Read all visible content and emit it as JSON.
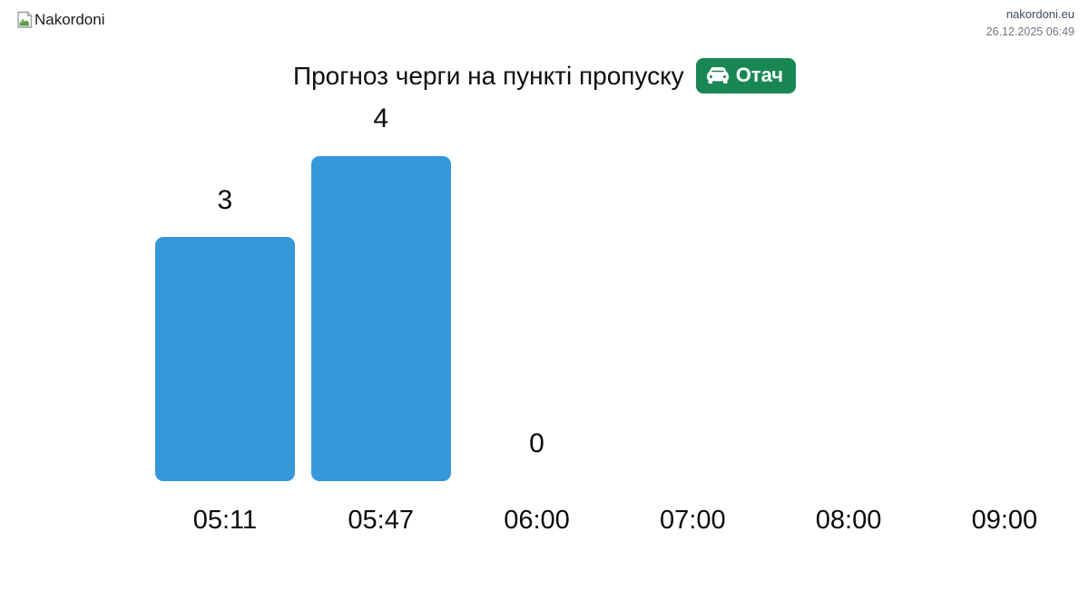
{
  "header": {
    "logo_alt": "Nakordoni",
    "site": "nakordoni.eu",
    "datetime": "26.12.2025 06:49"
  },
  "title": {
    "text": "Прогноз черги на пункті пропуску",
    "badge_label": "Отач"
  },
  "colors": {
    "bar": "#3498db",
    "badge_bg": "#198754",
    "badge_text": "#ffffff",
    "site_text": "#3d4d5f",
    "datetime_text": "#6e7680"
  },
  "chart_data": {
    "type": "bar",
    "title": "Прогноз черги на пункті пропуску",
    "categories": [
      "05:11",
      "05:47",
      "06:00",
      "07:00",
      "08:00",
      "09:00"
    ],
    "values": [
      3,
      4,
      0,
      null,
      null,
      null
    ],
    "xlabel": "",
    "ylabel": "",
    "ylim": [
      0,
      4
    ],
    "grid": false,
    "legend": false,
    "axis_lines": false,
    "value_labels_shown": [
      "3",
      "4",
      "0",
      "",
      "",
      ""
    ]
  }
}
